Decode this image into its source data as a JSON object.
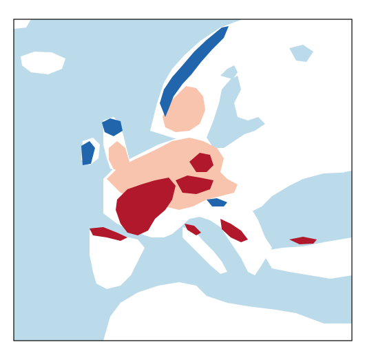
{
  "map": {
    "colors": {
      "land": "#ffffff",
      "water": "#bcdbea",
      "frame": "#000000",
      "light_red": "#f8c4ad",
      "dark_red": "#b2182b",
      "blue": "#2166ac"
    }
  }
}
